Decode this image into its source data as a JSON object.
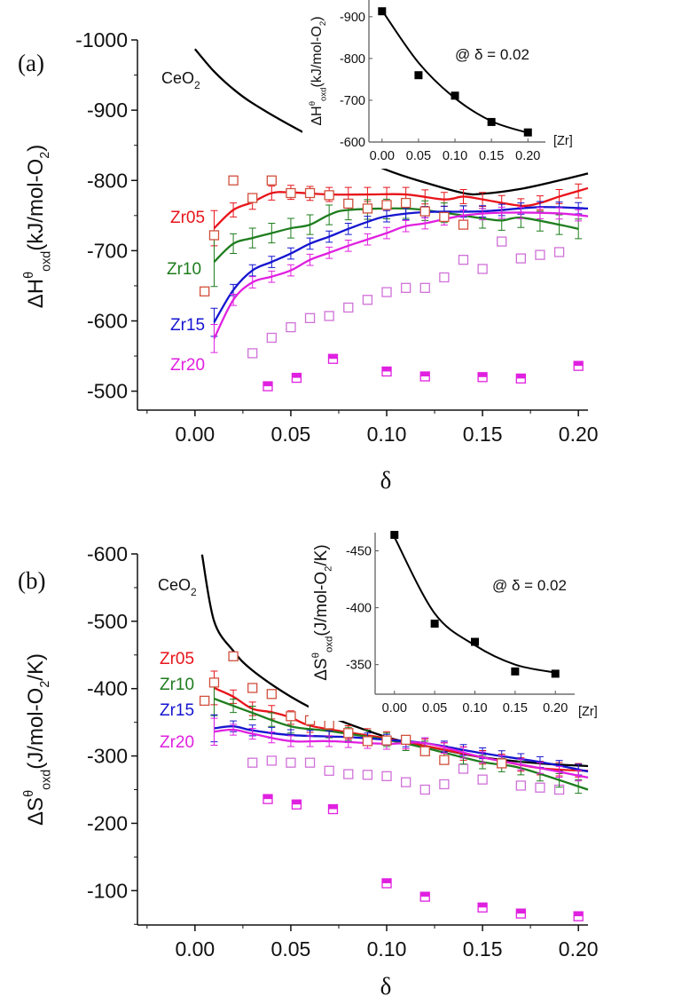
{
  "chart_data": [
    {
      "type": "line",
      "panel_label": "(a)",
      "xlabel": "δ",
      "ylabel_parts": [
        "ΔH",
        "θ",
        "oxd",
        "(kJ/mol-O",
        "2",
        ")"
      ],
      "xlim": [
        -0.03,
        0.205
      ],
      "ylim": [
        -1000,
        -473
      ],
      "y_reversed": true,
      "xticks": [
        "0.00",
        "0.05",
        "0.10",
        "0.15",
        "0.20"
      ],
      "yticks": [
        "-1000",
        "-900",
        "-800",
        "-700",
        "-600",
        "-500"
      ],
      "series": [
        {
          "name": "CeO2",
          "label_text": "CeO",
          "label_sub": "2",
          "color": "#000000",
          "x": [
            0.0,
            0.01,
            0.02,
            0.03,
            0.05,
            0.07,
            0.1,
            0.12,
            0.14,
            0.15,
            0.17,
            0.19,
            0.205
          ],
          "y": [
            -987,
            -955,
            -930,
            -910,
            -878,
            -850,
            -815,
            -797,
            -782,
            -781,
            -788,
            -800,
            -810
          ],
          "error": 0
        },
        {
          "name": "Zr05",
          "color": "#e8141b",
          "x": [
            0.01,
            0.02,
            0.03,
            0.04,
            0.05,
            0.07,
            0.09,
            0.11,
            0.13,
            0.14,
            0.15,
            0.17,
            0.18,
            0.19,
            0.205
          ],
          "y": [
            -732,
            -758,
            -769,
            -782,
            -783,
            -780,
            -780,
            -780,
            -773,
            -777,
            -773,
            -764,
            -768,
            -777,
            -789
          ],
          "error": 10
        },
        {
          "name": "Zr10",
          "color": "#1e7d1e",
          "x": [
            0.01,
            0.02,
            0.03,
            0.04,
            0.05,
            0.06,
            0.07,
            0.08,
            0.11,
            0.13,
            0.15,
            0.16,
            0.17,
            0.19,
            0.2
          ],
          "y": [
            -684,
            -710,
            -718,
            -725,
            -732,
            -737,
            -751,
            -758,
            -760,
            -754,
            -746,
            -743,
            -747,
            -737,
            -731
          ],
          "error": 14
        },
        {
          "name": "Zr15",
          "color": "#1515d0",
          "x": [
            0.01,
            0.02,
            0.03,
            0.04,
            0.05,
            0.06,
            0.07,
            0.08,
            0.09,
            0.1,
            0.12,
            0.15,
            0.18,
            0.205
          ],
          "y": [
            -598,
            -644,
            -672,
            -684,
            -696,
            -710,
            -720,
            -731,
            -741,
            -749,
            -755,
            -756,
            -762,
            -760
          ],
          "error": 8
        },
        {
          "name": "Zr20",
          "color": "#e020e0",
          "x": [
            0.01,
            0.02,
            0.03,
            0.04,
            0.05,
            0.06,
            0.07,
            0.08,
            0.09,
            0.1,
            0.11,
            0.12,
            0.14,
            0.16,
            0.19,
            0.205
          ],
          "y": [
            -575,
            -630,
            -655,
            -663,
            -672,
            -687,
            -697,
            -707,
            -716,
            -725,
            -735,
            -739,
            -750,
            -754,
            -753,
            -749
          ],
          "error": 8
        }
      ],
      "open_squares_red": {
        "color": "#d0503c",
        "x": [
          0.005,
          0.01,
          0.02,
          0.03,
          0.04,
          0.05,
          0.06,
          0.07,
          0.08,
          0.09,
          0.1,
          0.11,
          0.12,
          0.13,
          0.14
        ],
        "y": [
          -642,
          -722,
          -800,
          -775,
          -800,
          -782,
          -782,
          -779,
          -767,
          -760,
          -765,
          -768,
          -756,
          -748,
          -737
        ]
      },
      "open_squares_magenta": {
        "color": "#d070d8",
        "x": [
          0.03,
          0.04,
          0.05,
          0.06,
          0.07,
          0.08,
          0.09,
          0.1,
          0.11,
          0.12,
          0.13,
          0.14,
          0.15,
          0.16,
          0.17,
          0.18,
          0.19
        ],
        "y": [
          -554,
          -576,
          -591,
          -604,
          -607,
          -619,
          -630,
          -641,
          -647,
          -647,
          -662,
          -687,
          -674,
          -713,
          -689,
          -694,
          -698
        ]
      },
      "half_filled_magenta": {
        "color": "#e020e0",
        "x": [
          0.038,
          0.053,
          0.072,
          0.1,
          0.12,
          0.15,
          0.17,
          0.2
        ],
        "y": [
          -507,
          -519,
          -546,
          -528,
          -521,
          -520,
          -518,
          -536
        ]
      },
      "inset": {
        "annotation": "@ δ = 0.02",
        "xlabel": "[Zr]",
        "ylabel_parts": [
          "ΔH",
          "θ",
          "oxd",
          "(kJ/mol-O",
          "2",
          ")"
        ],
        "xlim": [
          -0.018,
          0.224
        ],
        "ylim": [
          -940,
          -600
        ],
        "xticks": [
          "0.00",
          "0.05",
          "0.10",
          "0.15",
          "0.20"
        ],
        "yticks": [
          "-900",
          "-800",
          "-700",
          "-600"
        ],
        "points": {
          "x": [
            0.0,
            0.05,
            0.1,
            0.15,
            0.2
          ],
          "y": [
            -913,
            -760,
            -711,
            -648,
            -623
          ]
        },
        "fit": {
          "x": [
            0.0,
            0.05,
            0.1,
            0.15,
            0.2
          ],
          "y": [
            -915,
            -790,
            -705,
            -650,
            -622
          ]
        }
      }
    },
    {
      "type": "line",
      "panel_label": "(b)",
      "xlabel": "δ",
      "ylabel_parts": [
        "ΔS",
        "θ",
        "oxd",
        "(J/mol-O",
        "2",
        "/K)"
      ],
      "xlim": [
        -0.03,
        0.205
      ],
      "ylim": [
        -600,
        -49
      ],
      "y_reversed": true,
      "xticks": [
        "0.00",
        "0.05",
        "0.10",
        "0.15",
        "0.20"
      ],
      "yticks": [
        "-600",
        "-500",
        "-400",
        "-300",
        "-200",
        "-100"
      ],
      "series": [
        {
          "name": "CeO2",
          "label_text": "CeO",
          "label_sub": "2",
          "color": "#000000",
          "x": [
            0.0037,
            0.01,
            0.02,
            0.03,
            0.05,
            0.07,
            0.1,
            0.12,
            0.15,
            0.18,
            0.205
          ],
          "y": [
            -599,
            -500,
            -456,
            -427,
            -388,
            -359,
            -328,
            -315,
            -298,
            -289,
            -285
          ],
          "error": 0
        },
        {
          "name": "Zr05",
          "color": "#e8141b",
          "x": [
            0.01,
            0.02,
            0.03,
            0.04,
            0.05,
            0.06,
            0.08,
            0.1,
            0.12,
            0.15,
            0.18,
            0.205
          ],
          "y": [
            -401,
            -388,
            -370,
            -365,
            -357,
            -345,
            -335,
            -326,
            -315,
            -298,
            -282,
            -278
          ],
          "error": 10
        },
        {
          "name": "Zr10",
          "color": "#1e7d1e",
          "x": [
            0.01,
            0.03,
            0.05,
            0.07,
            0.1,
            0.12,
            0.15,
            0.17,
            0.205
          ],
          "y": [
            -385,
            -364,
            -344,
            -337,
            -324,
            -312,
            -291,
            -282,
            -250
          ],
          "error": 10
        },
        {
          "name": "Zr15",
          "color": "#1515d0",
          "x": [
            0.01,
            0.02,
            0.03,
            0.05,
            0.08,
            0.1,
            0.12,
            0.15,
            0.18,
            0.205
          ],
          "y": [
            -341,
            -344,
            -338,
            -331,
            -328,
            -324,
            -319,
            -304,
            -291,
            -277
          ],
          "error": 8
        },
        {
          "name": "Zr20",
          "color": "#e020e0",
          "x": [
            0.01,
            0.02,
            0.03,
            0.05,
            0.07,
            0.1,
            0.12,
            0.15,
            0.18,
            0.205
          ],
          "y": [
            -336,
            -339,
            -333,
            -322,
            -322,
            -318,
            -319,
            -298,
            -282,
            -268
          ],
          "error": 8
        }
      ],
      "open_squares_red": {
        "color": "#d0503c",
        "x": [
          0.005,
          0.01,
          0.02,
          0.03,
          0.04,
          0.05,
          0.06,
          0.07,
          0.08,
          0.09,
          0.1,
          0.11,
          0.12,
          0.13,
          0.16
        ],
        "y": [
          -382,
          -409,
          -448,
          -401,
          -392,
          -359,
          -353,
          -347,
          -334,
          -322,
          -323,
          -324,
          -307,
          -294,
          -289
        ]
      },
      "open_squares_magenta": {
        "color": "#d070d8",
        "x": [
          0.03,
          0.04,
          0.05,
          0.06,
          0.07,
          0.08,
          0.09,
          0.1,
          0.11,
          0.12,
          0.13,
          0.14,
          0.15,
          0.17,
          0.18,
          0.19
        ],
        "y": [
          -290,
          -293,
          -290,
          -290,
          -278,
          -273,
          -272,
          -270,
          -261,
          -250,
          -258,
          -281,
          -265,
          -256,
          -253,
          -250
        ]
      },
      "half_filled_magenta": {
        "color": "#e020e0",
        "x": [
          0.038,
          0.053,
          0.072,
          0.1,
          0.12,
          0.15,
          0.17,
          0.2
        ],
        "y": [
          -236,
          -228,
          -221,
          -111,
          -91,
          -75,
          -66,
          -62
        ]
      },
      "inset": {
        "annotation": "@ δ = 0.02",
        "xlabel": "[Zr]",
        "ylabel_parts": [
          "ΔS",
          "θ",
          "oxd",
          "(J/mol-O",
          "2",
          "/K)"
        ],
        "xlim": [
          -0.024,
          0.224
        ],
        "ylim": [
          -466,
          -324
        ],
        "xticks": [
          "0.00",
          "0.05",
          "0.10",
          "0.15",
          "0.20"
        ],
        "yticks": [
          "-450",
          "-400",
          "-350"
        ],
        "points": {
          "x": [
            0.0,
            0.05,
            0.1,
            0.15,
            0.2
          ],
          "y": [
            -464,
            -386,
            -370,
            -344,
            -342
          ]
        },
        "fit": {
          "x": [
            0.0,
            0.05,
            0.1,
            0.15,
            0.2
          ],
          "y": [
            -462,
            -395,
            -367,
            -350,
            -343
          ]
        }
      }
    }
  ]
}
